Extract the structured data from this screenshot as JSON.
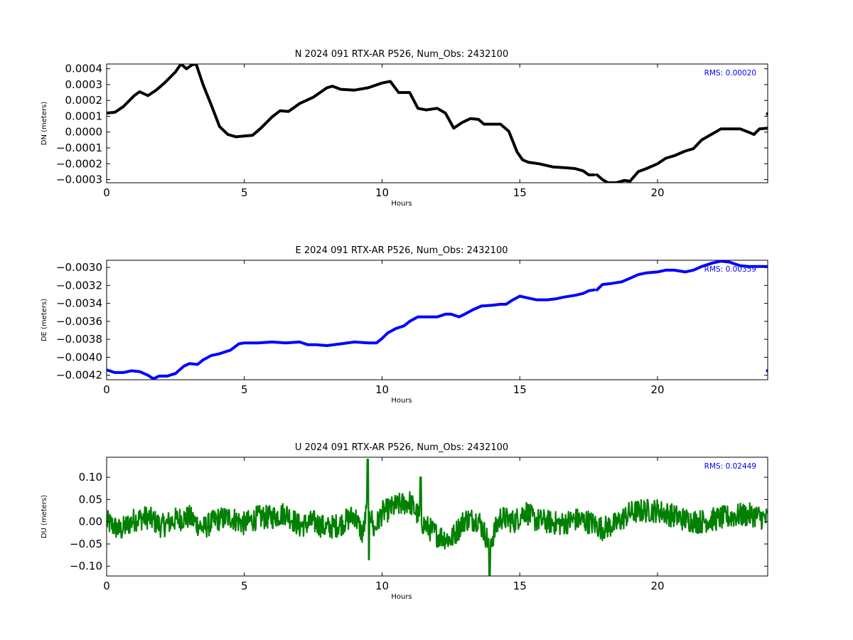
{
  "chart_data": [
    {
      "type": "line",
      "title": "N 2024 091 RTX-AR  P526, Num_Obs: 2432100",
      "xlabel": "Hours",
      "ylabel": "DN (meters)",
      "color": "#000000",
      "rms_label": "RMS:  0.00020",
      "rms_color": "#0000ff",
      "xlim": [
        0,
        24
      ],
      "ylim": [
        -0.00032,
        0.00043
      ],
      "xticks": [
        0,
        5,
        10,
        15,
        20
      ],
      "yticks": [
        -0.0003,
        -0.0002,
        -0.0001,
        0.0,
        0.0001,
        0.0002,
        0.0003,
        0.0004
      ],
      "ytick_labels": [
        "−0.0003",
        "−0.0002",
        "−0.0001",
        "0.0000",
        "0.0001",
        "0.0002",
        "0.0003",
        "0.0004"
      ],
      "x": [
        0,
        0.3,
        0.6,
        1.0,
        1.2,
        1.5,
        1.8,
        2.1,
        2.5,
        2.7,
        2.9,
        3.1,
        3.25,
        3.5,
        3.8,
        4.1,
        4.4,
        4.7,
        5.0,
        5.3,
        5.6,
        6.0,
        6.3,
        6.6,
        7.0,
        7.5,
        8.0,
        8.2,
        8.5,
        9.0,
        9.5,
        10.0,
        10.3,
        10.6,
        11.0,
        11.3,
        11.6,
        12.0,
        12.3,
        12.6,
        12.9,
        13.2,
        13.5,
        13.7,
        14.0,
        14.3,
        14.6,
        14.9,
        15.1,
        15.3,
        15.7,
        16.2,
        16.6,
        17.0,
        17.3,
        17.5,
        17.7
      ],
      "y": [
        0.00012,
        0.000125,
        0.00016,
        0.00023,
        0.000255,
        0.00023,
        0.000265,
        0.00031,
        0.00038,
        0.00043,
        0.0004,
        0.000425,
        0.00043,
        0.0003,
        0.00017,
        3.5e-05,
        -1.5e-05,
        -3e-05,
        -2.5e-05,
        -2e-05,
        2.5e-05,
        9.5e-05,
        0.000135,
        0.00013,
        0.00018,
        0.00022,
        0.00028,
        0.00029,
        0.00027,
        0.000265,
        0.00028,
        0.00031,
        0.00032,
        0.00025,
        0.00025,
        0.00015,
        0.00014,
        0.00015,
        0.00012,
        2.5e-05,
        6e-05,
        8.5e-05,
        8e-05,
        5e-05,
        5e-05,
        5e-05,
        5e-06,
        -0.000125,
        -0.000175,
        -0.00019,
        -0.0002,
        -0.00022,
        -0.000225,
        -0.00023,
        -0.000245,
        -0.00027,
        -0.00027
      ],
      "x2": [
        17.8,
        18.0,
        18.2,
        18.5,
        18.8,
        19.0,
        19.3,
        19.6,
        20.0,
        20.3,
        20.6,
        21.0,
        21.3,
        21.6,
        22.0,
        22.3,
        22.6,
        23.0,
        23.3,
        23.5,
        23.7,
        24.0
      ],
      "y2": [
        -0.00027,
        -0.0003,
        -0.00032,
        -0.00032,
        -0.000305,
        -0.00031,
        -0.00025,
        -0.00023,
        -0.0002,
        -0.000165,
        -0.00015,
        -0.00012,
        -0.000105,
        -5e-05,
        -1e-05,
        2e-05,
        2e-05,
        2e-05,
        0.0,
        -1.5e-05,
        2e-05,
        2.5e-05
      ],
      "outlier": [
        24.0,
        0.000115
      ]
    },
    {
      "type": "line",
      "title": "E 2024 091 RTX-AR  P526, Num_Obs: 2432100",
      "xlabel": "Hours",
      "ylabel": "DE (meters)",
      "color": "#0000ff",
      "rms_label": "RMS:  0.00359",
      "rms_color": "#0000ff",
      "xlim": [
        0,
        24
      ],
      "ylim": [
        -0.00425,
        -0.00292
      ],
      "xticks": [
        0,
        5,
        10,
        15,
        20
      ],
      "yticks": [
        -0.0042,
        -0.004,
        -0.0038,
        -0.0036,
        -0.0034,
        -0.0032,
        -0.003
      ],
      "ytick_labels": [
        "−0.0042",
        "−0.0040",
        "−0.0038",
        "−0.0036",
        "−0.0034",
        "−0.0032",
        "−0.0030"
      ],
      "x": [
        0,
        0.3,
        0.6,
        0.9,
        1.2,
        1.5,
        1.7,
        1.9,
        2.2,
        2.5,
        2.8,
        3.0,
        3.3,
        3.5,
        3.8,
        4.1,
        4.5,
        4.8,
        5.0,
        5.5,
        6.0,
        6.5,
        7.0,
        7.3,
        7.6,
        8.0,
        8.5,
        9.0,
        9.5,
        9.8,
        10.0,
        10.2,
        10.5,
        10.8,
        11.0,
        11.3,
        11.7,
        12.0,
        12.3,
        12.5,
        12.8,
        13.0,
        13.3,
        13.6,
        14.0,
        14.3,
        14.5,
        14.7,
        15.0,
        15.3,
        15.6,
        16.0,
        16.3,
        16.6,
        17.0,
        17.3,
        17.5,
        17.7
      ],
      "y": [
        -0.00414,
        -0.00417,
        -0.00417,
        -0.00415,
        -0.00416,
        -0.0042,
        -0.00424,
        -0.00421,
        -0.00421,
        -0.00418,
        -0.0041,
        -0.00407,
        -0.00408,
        -0.00403,
        -0.00398,
        -0.00396,
        -0.00392,
        -0.00385,
        -0.00384,
        -0.00384,
        -0.00383,
        -0.00384,
        -0.00383,
        -0.00386,
        -0.00386,
        -0.00387,
        -0.00385,
        -0.00383,
        -0.00384,
        -0.00384,
        -0.00379,
        -0.00373,
        -0.00368,
        -0.00365,
        -0.0036,
        -0.00355,
        -0.00355,
        -0.00355,
        -0.00352,
        -0.00352,
        -0.00355,
        -0.00352,
        -0.00347,
        -0.00343,
        -0.00342,
        -0.00341,
        -0.00341,
        -0.00337,
        -0.00332,
        -0.00334,
        -0.00336,
        -0.00336,
        -0.00335,
        -0.00333,
        -0.00331,
        -0.00329,
        -0.00326,
        -0.00325
      ],
      "x2": [
        17.8,
        18.0,
        18.3,
        18.7,
        19.0,
        19.3,
        19.6,
        20.0,
        20.3,
        20.6,
        21.0,
        21.3,
        21.6,
        22.0,
        22.3,
        22.6,
        23.0,
        23.3,
        23.6,
        24.0
      ],
      "y2": [
        -0.00325,
        -0.00319,
        -0.00318,
        -0.00316,
        -0.00312,
        -0.00308,
        -0.00306,
        -0.00305,
        -0.00303,
        -0.00303,
        -0.00305,
        -0.00303,
        -0.00299,
        -0.00295,
        -0.00293,
        -0.00294,
        -0.00298,
        -0.00299,
        -0.00299,
        -0.00299
      ],
      "outlier": [
        24.0,
        -0.00415
      ]
    },
    {
      "type": "line",
      "title": "U 2024 091 RTX-AR  P526, Num_Obs: 2432100",
      "xlabel": "Hours",
      "ylabel": "DU (meters)",
      "color": "#008000",
      "rms_label": "RMS:  0.02449",
      "rms_color": "#0000ff",
      "xlim": [
        0,
        24
      ],
      "ylim": [
        -0.122,
        0.145
      ],
      "xticks": [
        0,
        5,
        10,
        15,
        20
      ],
      "yticks": [
        -0.1,
        -0.05,
        0.0,
        0.05,
        0.1
      ],
      "ytick_labels": [
        "−0.10",
        "−0.05",
        "0.00",
        "0.05",
        "0.10"
      ],
      "x": [
        0,
        0.5,
        1.0,
        1.5,
        2.0,
        2.5,
        3.0,
        3.5,
        4.0,
        4.5,
        5.0,
        5.5,
        6.0,
        6.5,
        7.0,
        7.5,
        8.0,
        8.5,
        9.0,
        9.3,
        9.5,
        9.7,
        10.0,
        10.5,
        11.0,
        11.5,
        12.0,
        12.5,
        13.0,
        13.5,
        13.9,
        14.3,
        14.8,
        15.2,
        15.5,
        16.0,
        16.5,
        17.0,
        17.5,
        18.0,
        18.5,
        19.0,
        19.5,
        20.0,
        20.5,
        21.0,
        21.5,
        22.0,
        22.5,
        23.0,
        23.5,
        24.0
      ],
      "y": [
        0.0,
        -0.02,
        0.005,
        0.01,
        -0.01,
        0.005,
        0.01,
        -0.015,
        0.005,
        0.01,
        -0.005,
        0.01,
        0.01,
        0.02,
        -0.01,
        0.0,
        -0.015,
        -0.005,
        0.015,
        -0.03,
        0.05,
        -0.02,
        0.02,
        0.035,
        0.045,
        -0.005,
        -0.03,
        -0.04,
        0.005,
        0.005,
        -0.05,
        0.01,
        0.0,
        0.025,
        0.005,
        0.0,
        -0.005,
        0.005,
        0.0,
        -0.015,
        -0.005,
        0.02,
        0.025,
        0.025,
        0.015,
        0.005,
        0.0,
        0.005,
        0.01,
        0.015,
        0.015,
        0.005
      ],
      "noise_amplitude": 0.03
    }
  ]
}
